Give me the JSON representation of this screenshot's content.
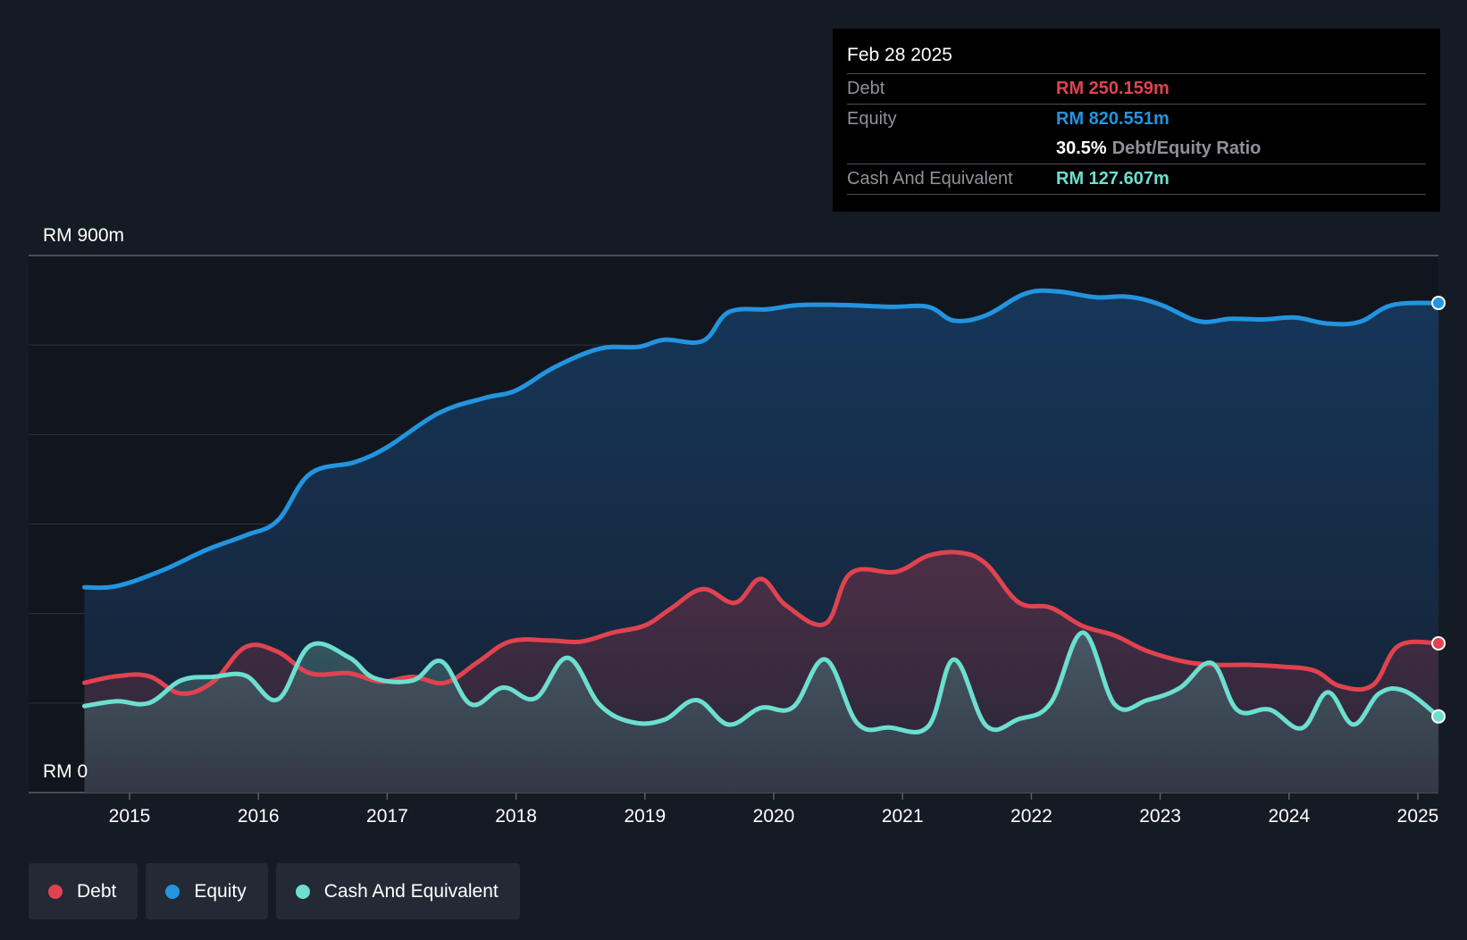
{
  "tooltip": {
    "date": "Feb 28 2025",
    "debt_label": "Debt",
    "debt_value": "RM 250.159m",
    "equity_label": "Equity",
    "equity_value": "RM 820.551m",
    "ratio_value": "30.5%",
    "ratio_label": "Debt/Equity Ratio",
    "cash_label": "Cash And Equivalent",
    "cash_value": "RM 127.607m"
  },
  "legend": {
    "debt": "Debt",
    "equity": "Equity",
    "cash": "Cash And Equivalent"
  },
  "colors": {
    "debt": "#e0434f",
    "equity": "#2394df",
    "cash": "#6cdfcf",
    "background": "#151b24"
  },
  "chart_data": {
    "type": "area",
    "title": "",
    "xlabel": "",
    "ylabel": "",
    "y_top_label": "RM 900m",
    "y_bottom_label": "RM 0",
    "ylim": [
      0,
      900
    ],
    "xlim": [
      2014.65,
      2025.16
    ],
    "x_ticks": [
      "2015",
      "2016",
      "2017",
      "2018",
      "2019",
      "2020",
      "2021",
      "2022",
      "2023",
      "2024",
      "2025"
    ],
    "series": [
      {
        "name": "Equity",
        "x": [
          2014.65,
          2014.9,
          2015.25,
          2015.6,
          2015.9,
          2016.15,
          2016.4,
          2016.75,
          2017.0,
          2017.4,
          2017.75,
          2018.0,
          2018.3,
          2018.65,
          2018.95,
          2019.15,
          2019.45,
          2019.65,
          2019.95,
          2020.2,
          2020.55,
          2020.9,
          2021.2,
          2021.4,
          2021.65,
          2021.95,
          2022.2,
          2022.5,
          2022.75,
          2023.0,
          2023.3,
          2023.55,
          2023.8,
          2024.05,
          2024.3,
          2024.55,
          2024.8,
          2025.16
        ],
        "values": [
          344,
          346,
          372,
          407,
          431,
          456,
          534,
          554,
          579,
          636,
          661,
          674,
          713,
          744,
          747,
          759,
          757,
          805,
          810,
          817,
          817,
          814,
          814,
          791,
          800,
          836,
          840,
          830,
          831,
          818,
          790,
          794,
          793,
          796,
          786,
          789,
          817,
          820.551
        ]
      },
      {
        "name": "Debt",
        "x": [
          2014.65,
          2014.9,
          2015.15,
          2015.4,
          2015.65,
          2015.9,
          2016.15,
          2016.4,
          2016.7,
          2016.95,
          2017.2,
          2017.45,
          2017.7,
          2017.95,
          2018.25,
          2018.5,
          2018.75,
          2019.0,
          2019.2,
          2019.45,
          2019.7,
          2019.9,
          2020.1,
          2020.4,
          2020.6,
          2020.95,
          2021.2,
          2021.45,
          2021.65,
          2021.9,
          2022.15,
          2022.4,
          2022.65,
          2022.9,
          2023.2,
          2023.45,
          2023.7,
          2023.95,
          2024.2,
          2024.4,
          2024.65,
          2024.85,
          2025.16
        ],
        "values": [
          184,
          195,
          195,
          166,
          186,
          244,
          236,
          200,
          200,
          186,
          194,
          184,
          218,
          253,
          255,
          253,
          268,
          280,
          308,
          341,
          318,
          358,
          313,
          283,
          368,
          370,
          397,
          402,
          383,
          319,
          310,
          279,
          263,
          237,
          219,
          214,
          214,
          211,
          204,
          178,
          180,
          246,
          250.159
        ]
      },
      {
        "name": "Cash And Equivalent",
        "x": [
          2014.65,
          2014.9,
          2015.15,
          2015.4,
          2015.65,
          2015.9,
          2016.15,
          2016.4,
          2016.7,
          2016.9,
          2017.2,
          2017.42,
          2017.65,
          2017.9,
          2018.15,
          2018.4,
          2018.65,
          2018.9,
          2019.15,
          2019.4,
          2019.65,
          2019.9,
          2020.15,
          2020.4,
          2020.65,
          2020.9,
          2021.2,
          2021.4,
          2021.65,
          2021.9,
          2022.15,
          2022.4,
          2022.65,
          2022.9,
          2023.15,
          2023.4,
          2023.6,
          2023.85,
          2024.1,
          2024.3,
          2024.5,
          2024.7,
          2024.9,
          2025.16
        ],
        "values": [
          145,
          153,
          150,
          188,
          194,
          196,
          156,
          246,
          227,
          192,
          188,
          220,
          148,
          176,
          158,
          226,
          147,
          118,
          122,
          155,
          114,
          142,
          143,
          223,
          116,
          109,
          111,
          223,
          112,
          123,
          150,
          268,
          147,
          155,
          175,
          217,
          138,
          139,
          108,
          168,
          114,
          166,
          170,
          127.607
        ]
      }
    ]
  }
}
